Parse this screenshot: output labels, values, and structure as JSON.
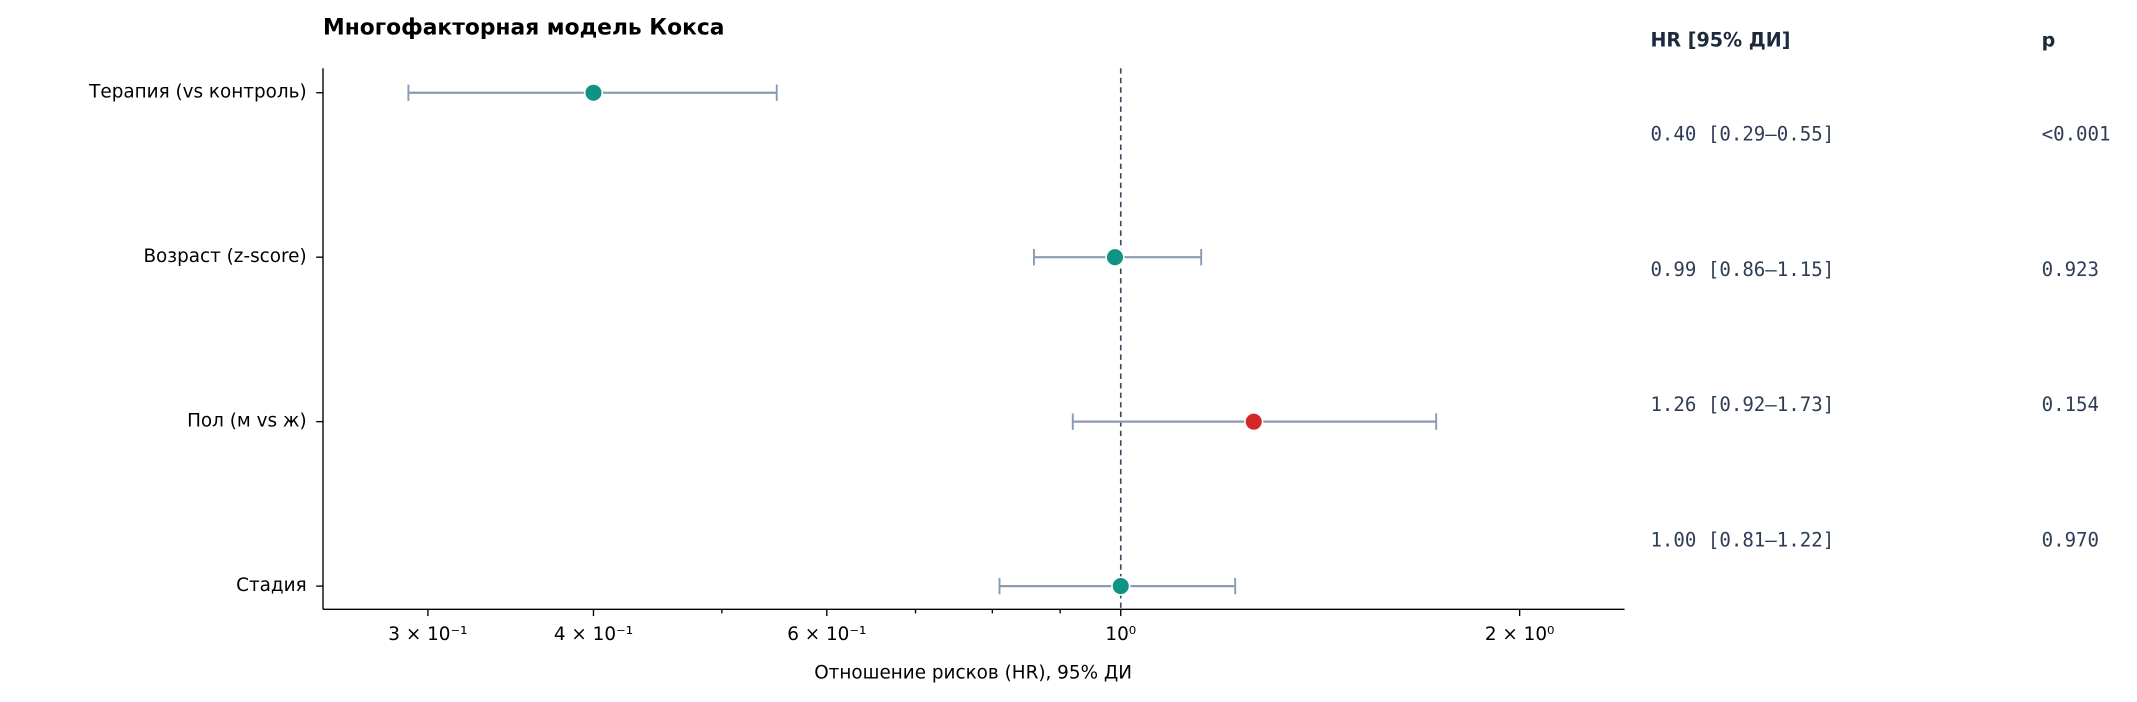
{
  "chart_data": {
    "type": "forest",
    "title": "Многофакторная модель Кокса",
    "xlabel": "Отношение рисков (HR), 95% ДИ",
    "categories": [
      "Терапия (vs контроль)",
      "Возраст (z-score)",
      "Пол (м vs ж)",
      "Стадия"
    ],
    "hr": [
      0.4,
      0.99,
      1.26,
      1.0
    ],
    "ci_lower": [
      0.29,
      0.86,
      0.92,
      0.81
    ],
    "ci_upper": [
      0.55,
      1.15,
      1.73,
      1.22
    ],
    "colors": [
      "#0e9384",
      "#0e9384",
      "#d62728",
      "#0e9384"
    ],
    "error_color": "#8a9bb3",
    "xscale": "log",
    "xlim": [
      0.25,
      2.4
    ],
    "xticks": [
      {
        "value": 0.3,
        "label": "3 × 10⁻¹"
      },
      {
        "value": 0.4,
        "label": "4 × 10⁻¹"
      },
      {
        "value": 0.6,
        "label": "6 × 10⁻¹"
      },
      {
        "value": 1,
        "label": "10⁰"
      },
      {
        "value": 2,
        "label": "2 × 10⁰"
      }
    ],
    "xminor": [
      0.5,
      0.7,
      0.8,
      0.9
    ],
    "refline": 1,
    "table": {
      "headers": [
        "HR [95% ДИ]",
        "p"
      ],
      "rows": [
        [
          "0.40 [0.29–0.55]",
          "<0.001"
        ],
        [
          "0.99 [0.86–1.15]",
          "0.923"
        ],
        [
          "1.26 [0.92–1.73]",
          "0.154"
        ],
        [
          "1.00 [0.81–1.22]",
          "0.970"
        ]
      ]
    }
  }
}
